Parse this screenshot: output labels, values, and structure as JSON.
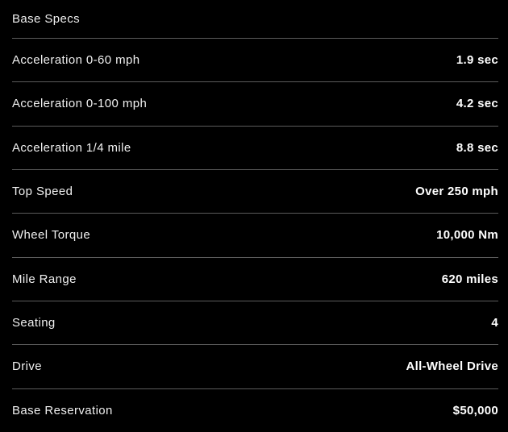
{
  "table": {
    "header": "Base Specs",
    "rows": [
      {
        "label": "Acceleration 0-60 mph",
        "value": "1.9 sec"
      },
      {
        "label": "Acceleration 0-100 mph",
        "value": "4.2 sec"
      },
      {
        "label": "Acceleration 1/4 mile",
        "value": "8.8 sec"
      },
      {
        "label": "Top Speed",
        "value": "Over 250 mph"
      },
      {
        "label": "Wheel Torque",
        "value": "10,000 Nm"
      },
      {
        "label": "Mile Range",
        "value": "620 miles"
      },
      {
        "label": "Seating",
        "value": "4"
      },
      {
        "label": "Drive",
        "value": "All-Wheel Drive"
      },
      {
        "label": "Base Reservation",
        "value": "$50,000"
      }
    ]
  },
  "colors": {
    "background": "#000000",
    "divider": "#5c5c5c",
    "label_text": "#f0f0f0",
    "value_text": "#ffffff"
  }
}
